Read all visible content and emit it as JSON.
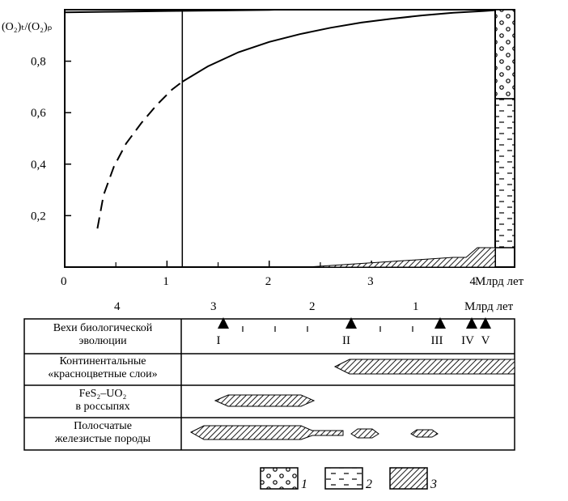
{
  "chart_data": {
    "type": "line",
    "ylabel": "(O₂)ₜ/(O₂)ₚ",
    "yticks": [
      "0,2",
      "0,4",
      "0,6",
      "0,8"
    ],
    "xticks": [
      "0",
      "1",
      "2",
      "3",
      "4"
    ],
    "xunit": "Млрд лет",
    "xlim": [
      0,
      4.4
    ],
    "ylim": [
      0,
      1.0
    ],
    "vertical_marker_x": 1.15,
    "series": [
      {
        "style": "dashed",
        "x": [
          0.32,
          0.38,
          0.48,
          0.6,
          0.75,
          0.9,
          1.05,
          1.15
        ],
        "y": [
          0.15,
          0.28,
          0.39,
          0.48,
          0.56,
          0.63,
          0.69,
          0.72
        ]
      },
      {
        "style": "solid",
        "x": [
          1.15,
          1.4,
          1.7,
          2.0,
          2.3,
          2.6,
          2.9,
          3.2,
          3.5,
          3.8,
          4.1,
          4.28
        ],
        "y": [
          0.72,
          0.78,
          0.835,
          0.875,
          0.905,
          0.93,
          0.95,
          0.965,
          0.978,
          0.988,
          0.995,
          1.0
        ]
      },
      {
        "style": "solid",
        "x": [
          0.0,
          0.5,
          1.0,
          1.5,
          2.0,
          2.05
        ],
        "y": [
          0.99,
          0.992,
          0.995,
          0.997,
          0.999,
          1.0
        ]
      }
    ],
    "column": {
      "upper_pattern": "1",
      "lower_pattern": "2"
    }
  },
  "timeline": {
    "ticks": [
      "4",
      "3",
      "2",
      "1"
    ],
    "unit": "Млрд лет",
    "milestones": [
      "I",
      "II",
      "III",
      "IV",
      "V"
    ],
    "rows": [
      {
        "label_lines": [
          "Вехи биологической",
          "эволюции"
        ]
      },
      {
        "label_lines": [
          "Континентальные",
          "«красноцветные слои»"
        ]
      },
      {
        "label_lines": [
          "FeS₂–UO₂",
          "в россыпях"
        ]
      },
      {
        "label_lines": [
          "Полосчатые",
          "железистые породы"
        ]
      }
    ]
  },
  "legend": [
    {
      "icon": "circles-pattern",
      "label": "1"
    },
    {
      "icon": "dashes-pattern",
      "label": "2"
    },
    {
      "icon": "hatch-pattern",
      "label": "3"
    }
  ]
}
